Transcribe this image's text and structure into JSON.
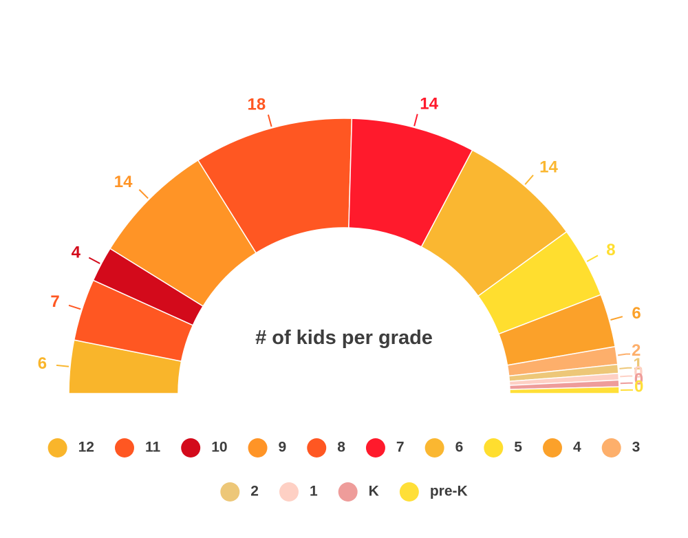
{
  "chart_data": {
    "type": "pie",
    "variant": "semi-donut",
    "title": "# of kids per grade",
    "slices": [
      {
        "label": "12",
        "value": 6,
        "color": "#F9B52B"
      },
      {
        "label": "11",
        "value": 7,
        "color": "#FF5722"
      },
      {
        "label": "10",
        "value": 4,
        "color": "#D30A1B"
      },
      {
        "label": "9",
        "value": 14,
        "color": "#FF9426"
      },
      {
        "label": "8",
        "value": 18,
        "color": "#FF5722"
      },
      {
        "label": "7",
        "value": 14,
        "color": "#FF1A2C"
      },
      {
        "label": "6",
        "value": 14,
        "color": "#FAB731"
      },
      {
        "label": "5",
        "value": 8,
        "color": "#FFDE2F"
      },
      {
        "label": "4",
        "value": 6,
        "color": "#FBA12A"
      },
      {
        "label": "3",
        "value": 2,
        "color": "#FDAF6B"
      },
      {
        "label": "2",
        "value": 1,
        "color": "#EDC778"
      },
      {
        "label": "1",
        "value": 0,
        "color": "#FED0C4"
      },
      {
        "label": "K",
        "value": 0,
        "color": "#EE9C9A"
      },
      {
        "label": "pre-K",
        "value": 0,
        "color": "#FFDF38"
      }
    ],
    "legend_position": "bottom"
  }
}
